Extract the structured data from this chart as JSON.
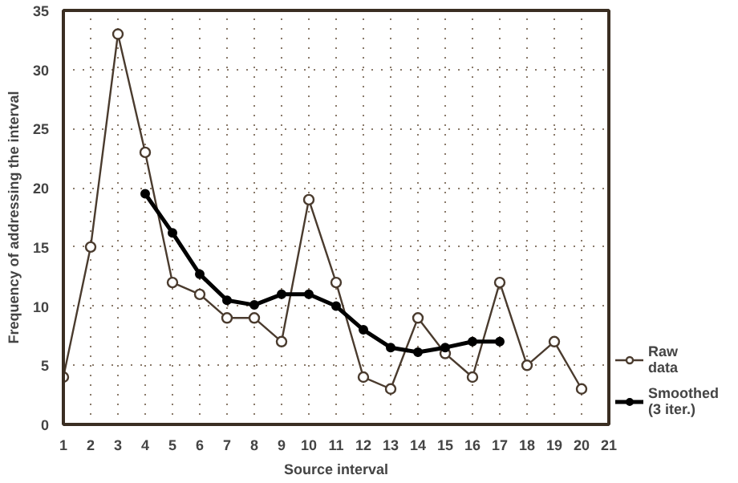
{
  "chart_data": {
    "type": "line",
    "xlabel": "Source interval",
    "ylabel": "Frequency of addressing the interval",
    "x": [
      1,
      2,
      3,
      4,
      5,
      6,
      7,
      8,
      9,
      10,
      11,
      12,
      13,
      14,
      15,
      16,
      17,
      18,
      19,
      20
    ],
    "series": [
      {
        "name": "Raw\ndata",
        "color": "#4a3b2e",
        "marker": "circle",
        "values": [
          4,
          15,
          33,
          23,
          12,
          11,
          9,
          9,
          7,
          19,
          12,
          4,
          3,
          9,
          6,
          4,
          12,
          5,
          7,
          3
        ]
      },
      {
        "name": "Smoothed\n(3 iter.)",
        "color": "#000000",
        "marker": "dot",
        "x": [
          4,
          5,
          6,
          7,
          8,
          9,
          10,
          11,
          12,
          13,
          14,
          15,
          16,
          17
        ],
        "values": [
          19.5,
          16.2,
          12.7,
          10.5,
          10.1,
          11,
          11,
          10,
          8,
          6.5,
          6.1,
          6.5,
          7,
          7
        ]
      }
    ],
    "xlim": [
      1,
      21
    ],
    "xticks": [
      1,
      2,
      3,
      4,
      5,
      6,
      7,
      8,
      9,
      10,
      11,
      12,
      13,
      14,
      15,
      16,
      17,
      18,
      19,
      20,
      21
    ],
    "ylim": [
      0,
      35
    ],
    "yticks": [
      0,
      5,
      10,
      15,
      20,
      25,
      30,
      35
    ],
    "grid": true,
    "legend": "bottom right",
    "line_style": "solid"
  }
}
